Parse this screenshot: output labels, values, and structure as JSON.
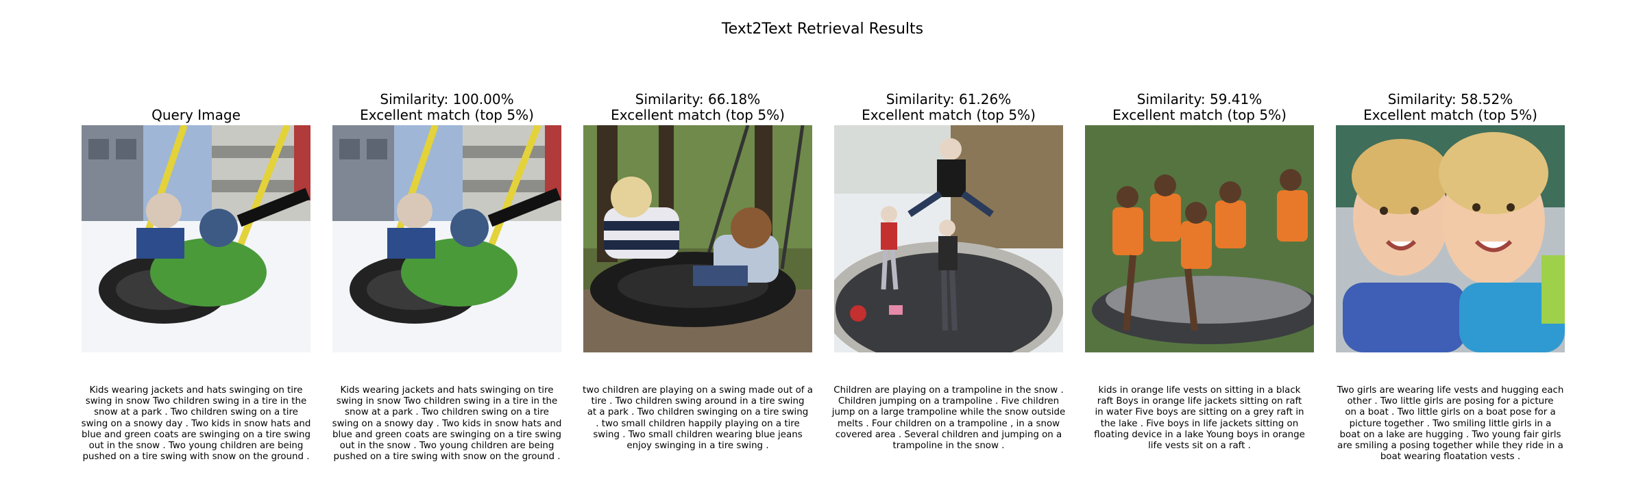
{
  "title": "Text2Text Retrieval Results",
  "panels": [
    {
      "similarity": "",
      "match": "",
      "heading": "Query Image",
      "scene": "tire-swing-snow",
      "caption": "Kids wearing jackets and hats swinging on tire\nswing in snow Two children swing in a tire in the\nsnow at a park . Two children swing on a tire\nswing on a snowy day . Two kids in snow hats and\nblue and green coats are swinging on a tire swing\nout in the snow . Two young children are being\npushed on a tire swing with snow on the ground ."
    },
    {
      "similarity": "Similarity: 100.00%",
      "match": "Excellent match (top 5%)",
      "heading": "",
      "scene": "tire-swing-snow",
      "caption": "Kids wearing jackets and hats swinging on tire\nswing in snow Two children swing in a tire in the\nsnow at a park . Two children swing on a tire\nswing on a snowy day . Two kids in snow hats and\nblue and green coats are swinging on a tire swing\nout in the snow . Two young children are being\npushed on a tire swing with snow on the ground ."
    },
    {
      "similarity": "Similarity: 66.18%",
      "match": "Excellent match (top 5%)",
      "heading": "",
      "scene": "tire-swing-park",
      "caption": "two children are playing on a swing made out of a\ntire . Two children swing around in a tire swing\nat a park . Two children swinging on a tire swing\n. two small children happily playing on a tire\nswing . Two small children wearing blue jeans\nenjoy swinging in a tire swing ."
    },
    {
      "similarity": "Similarity: 61.26%",
      "match": "Excellent match (top 5%)",
      "heading": "",
      "scene": "trampoline-snow",
      "caption": "Children are playing on a trampoline in the snow .\nChildren jumping on a trampoline . Five children\njump on a large trampoline while the snow outside\nmelts . Four children on a trampoline , in a snow\ncovered area . Several children and jumping on a\ntrampoline in the snow ."
    },
    {
      "similarity": "Similarity: 59.41%",
      "match": "Excellent match (top 5%)",
      "heading": "",
      "scene": "raft-lake",
      "caption": "kids in orange life vests on sitting in a black\nraft Boys in orange life jackets sitting on raft\nin water Five boys are sitting on a grey raft in\nthe lake . Five boys in life jackets sitting on\nfloating device in a lake Young boys in orange\nlife vests sit on a raft ."
    },
    {
      "similarity": "Similarity: 58.52%",
      "match": "Excellent match (top 5%)",
      "heading": "",
      "scene": "girls-boat",
      "caption": "Two girls are wearing life vests and hugging each\nother . Two little girls are posing for a picture\non a boat . Two little girls on a boat pose for a\npicture together . Two smiling little girls in a\nboat on a lake are hugging . Two young fair girls\nare smiling a posing together while they ride in a\nboat wearing floatation vests ."
    }
  ]
}
